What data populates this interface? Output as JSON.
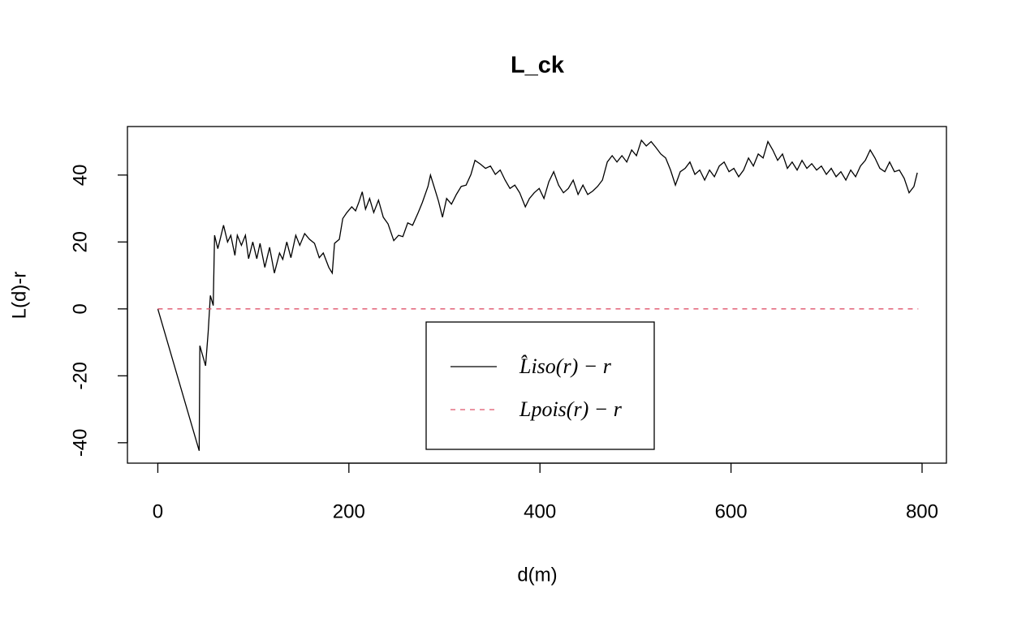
{
  "chart_data": {
    "type": "line",
    "title": "L_ck",
    "x_label": "d(m)",
    "y_label": "L(d)-r",
    "xlim": [
      -31.8,
      825.5
    ],
    "ylim": [
      -46.1,
      54.5
    ],
    "xticks": [
      0,
      200,
      400,
      600,
      800
    ],
    "yticks": [
      -40,
      -20,
      0,
      20,
      40
    ],
    "grid": false,
    "legend_position": "bottom",
    "series": [
      {
        "name": "L̂iso(r) − r",
        "color": "#000000",
        "dash": "solid",
        "x": [
          0,
          43.3,
          44,
          50,
          52.7,
          55,
          58,
          59.4,
          62.8,
          65.4,
          68.8,
          73,
          76.4,
          80.7,
          83.2,
          87.5,
          91.7,
          95,
          99.4,
          103.6,
          107,
          112,
          117,
          122,
          127.4,
          130.8,
          135,
          139.3,
          144.4,
          148.6,
          153.7,
          158.8,
          164,
          169,
          173.2,
          179,
          182.6,
          185,
          190,
          193.6,
          197.9,
          203,
          207,
          210.6,
          214,
          217.4,
          221.7,
          226,
          231,
          236,
          241,
          247,
          252,
          256.5,
          261.6,
          266.7,
          272.6,
          276.9,
          282.8,
          285.4,
          290.4,
          293.8,
          298,
          302.3,
          307.4,
          312.5,
          317.6,
          322.7,
          327.8,
          332,
          338,
          343,
          348.2,
          353.3,
          358.4,
          363.5,
          368.6,
          373.7,
          378.8,
          384.7,
          389,
          394,
          399.2,
          404.2,
          409.3,
          414.4,
          419.5,
          424.6,
          429.7,
          434.8,
          439.9,
          445,
          450,
          455.2,
          460.3,
          465.4,
          470.5,
          475.6,
          480.6,
          485.8,
          490.9,
          496,
          501,
          506.2,
          511.3,
          516.4,
          521.5,
          526.5,
          531.6,
          536.7,
          541.8,
          546.9,
          552,
          557,
          562.2,
          567.3,
          572.4,
          577.5,
          582.6,
          587.7,
          592.8,
          597.9,
          603,
          608,
          613.2,
          618.3,
          623.4,
          628.5,
          633.6,
          638.6,
          643.7,
          648.8,
          653.9,
          659,
          664,
          669.2,
          674.3,
          679.4,
          684.5,
          689.6,
          694.6,
          699.8,
          704.9,
          710,
          715,
          720.2,
          725.3,
          730.4,
          735.5,
          740.6,
          745.7,
          750.7,
          755.8,
          761,
          766,
          771.1,
          776.2,
          781.3,
          786.4,
          791.5,
          795
        ],
        "values": [
          0,
          -42.4,
          -11,
          -17,
          -7,
          4,
          1,
          22,
          18,
          21,
          25,
          20,
          22,
          16,
          22,
          19,
          22,
          15,
          20,
          15,
          19.6,
          12.4,
          18.4,
          10.7,
          16.7,
          14.8,
          20,
          15.3,
          22,
          19,
          22.5,
          20.8,
          19.6,
          15.3,
          16.7,
          12.4,
          10.7,
          19.6,
          20.8,
          27,
          28.8,
          30.5,
          29.3,
          32,
          35,
          29.8,
          33,
          28.8,
          32.5,
          27.4,
          25.4,
          20.4,
          22,
          21.6,
          25.7,
          25,
          28.8,
          31.8,
          36.6,
          40,
          35.4,
          32.2,
          27.4,
          33,
          31.3,
          34.2,
          36.6,
          37,
          40.2,
          44.4,
          43.2,
          42,
          42.7,
          40.2,
          41.5,
          38.5,
          36,
          37,
          34.7,
          30.5,
          33,
          34.7,
          36,
          33,
          38,
          41,
          37,
          34.7,
          36,
          38.5,
          34.2,
          37,
          34.2,
          35.2,
          36.6,
          38.5,
          43.9,
          45.8,
          43.9,
          45.8,
          43.9,
          47.5,
          45.8,
          50.4,
          48.7,
          50,
          48.2,
          46.3,
          45.1,
          41.5,
          37,
          41,
          42,
          43.9,
          40.2,
          41.5,
          38.5,
          41.5,
          39.5,
          42.7,
          43.9,
          41,
          42,
          39.5,
          41.5,
          45.1,
          42.7,
          46.3,
          45.1,
          50,
          47.5,
          44.4,
          46.3,
          42,
          43.9,
          41.5,
          44.4,
          42,
          43.4,
          41.5,
          42.7,
          40.2,
          42,
          39.5,
          41,
          38.5,
          41.5,
          39.5,
          42.7,
          44.4,
          47.5,
          45.1,
          42,
          41,
          43.9,
          41,
          41.5,
          39,
          34.7,
          36.6,
          40.7
        ]
      },
      {
        "name": "Lpois(r) − r",
        "color": "#df536b",
        "dash": "dashed",
        "x": [
          0,
          796
        ],
        "values": [
          0,
          0
        ]
      }
    ]
  }
}
